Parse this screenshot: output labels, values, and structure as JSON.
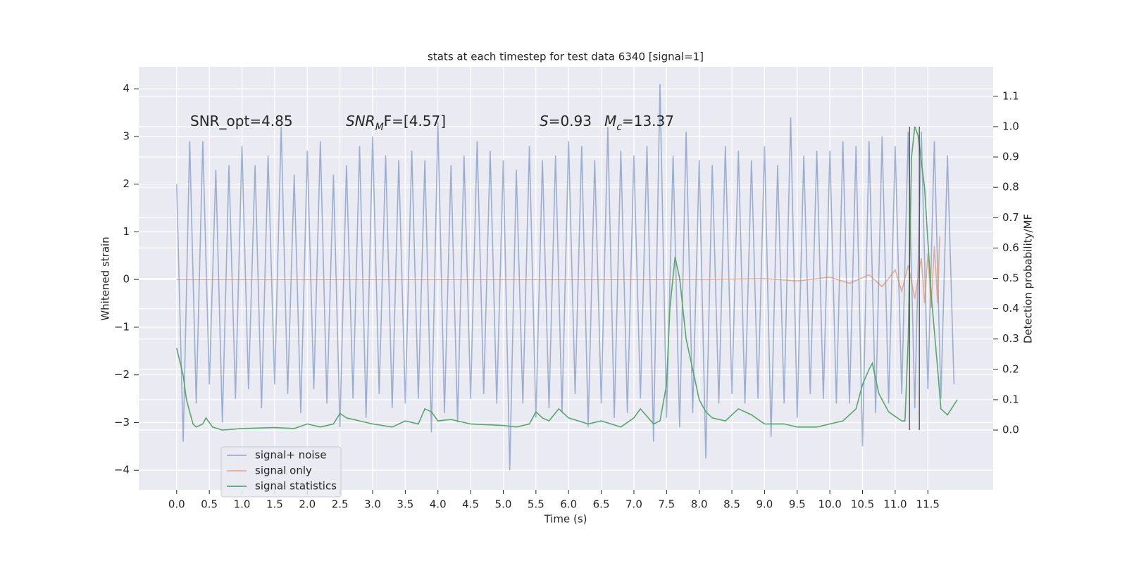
{
  "chart_data": {
    "type": "line",
    "title": "stats at each timestep for test data 6340 [signal=1]",
    "x_label": "Time (s)",
    "y_label": "Whitened strain",
    "y2_label": "Detection probability/MF",
    "annotations": [
      [
        "SNR_opt=4.85"
      ],
      [
        "SNR",
        "M",
        "F=[4.57]"
      ],
      [
        "S",
        "=0.93"
      ],
      [
        "M",
        "c",
        "=13.37"
      ]
    ],
    "xlim": [
      -0.58,
      12.5
    ],
    "ylim": [
      -4.41,
      4.46
    ],
    "y2lim": [
      -0.197,
      1.197
    ],
    "xticks": [
      {
        "value": 0,
        "label": "0.0"
      },
      0.5,
      {
        "value": 1,
        "label": "1.0"
      },
      1.5,
      {
        "value": 2,
        "label": "2.0"
      },
      2.5,
      {
        "value": 3,
        "label": "3.0"
      },
      3.5,
      {
        "value": 4,
        "label": "4.0"
      },
      4.5,
      {
        "value": 5,
        "label": "5.0"
      },
      5.5,
      {
        "value": 6,
        "label": "6.0"
      },
      6.5,
      {
        "value": 7,
        "label": "7.0"
      },
      7.5,
      {
        "value": 8,
        "label": "8.0"
      },
      8.5,
      {
        "value": 9,
        "label": "9.0"
      },
      9.5,
      {
        "value": 10,
        "label": "10.0"
      },
      10.5,
      {
        "value": 11,
        "label": "11.0"
      },
      11.5
    ],
    "yticks": [
      {
        "value": -4,
        "label": "−4"
      },
      {
        "value": -3,
        "label": "−3"
      },
      {
        "value": -2,
        "label": "−2"
      },
      {
        "value": -1,
        "label": "−1"
      },
      0,
      1,
      2,
      3,
      4
    ],
    "y2ticks": [
      {
        "value": 0,
        "label": "0.0"
      },
      0.1,
      0.2,
      0.3,
      0.4,
      0.5,
      0.6,
      0.7,
      0.8,
      0.9,
      {
        "value": 1,
        "label": "1.0"
      },
      1.1
    ],
    "grid": true,
    "legend": "lower left",
    "vlines": {
      "color": "#333333",
      "x": [
        11.22,
        11.37
      ],
      "y2": [
        0,
        1
      ]
    },
    "series": [
      {
        "name": "signal+ noise",
        "color": "#4c72b0",
        "opacity": 0.5,
        "x": [
          0,
          0.1,
          0.2,
          0.3,
          0.4,
          0.5,
          0.6,
          0.7,
          0.8,
          0.9,
          1,
          1.1,
          1.2,
          1.3,
          1.4,
          1.5,
          1.6,
          1.7,
          1.8,
          1.9,
          2,
          2.1,
          2.2,
          2.3,
          2.4,
          2.5,
          2.6,
          2.7,
          2.8,
          2.9,
          3,
          3.1,
          3.2,
          3.3,
          3.4,
          3.5,
          3.6,
          3.7,
          3.8,
          3.9,
          4,
          4.1,
          4.2,
          4.3,
          4.4,
          4.5,
          4.6,
          4.7,
          4.8,
          4.9,
          5,
          5.1,
          5.2,
          5.3,
          5.4,
          5.5,
          5.6,
          5.7,
          5.8,
          5.9,
          6,
          6.1,
          6.2,
          6.3,
          6.4,
          6.5,
          6.6,
          6.7,
          6.8,
          6.9,
          7,
          7.1,
          7.2,
          7.3,
          7.4,
          7.5,
          7.6,
          7.7,
          7.8,
          7.9,
          8,
          8.1,
          8.2,
          8.3,
          8.4,
          8.5,
          8.6,
          8.7,
          8.8,
          8.9,
          9,
          9.1,
          9.2,
          9.3,
          9.4,
          9.5,
          9.6,
          9.7,
          9.8,
          9.9,
          10,
          10.1,
          10.2,
          10.3,
          10.4,
          10.5,
          10.6,
          10.7,
          10.8,
          10.9,
          11,
          11.1,
          11.2,
          11.3,
          11.4,
          11.5,
          11.6,
          11.7,
          11.8,
          11.9
        ],
        "values": [
          2.0,
          -3.4,
          2.9,
          -2.6,
          2.9,
          -2.2,
          2.3,
          -3.0,
          2.4,
          -2.5,
          2.8,
          -2.3,
          2.4,
          -2.7,
          2.6,
          -2.2,
          3.2,
          -2.4,
          2.2,
          -2.8,
          2.7,
          -2.3,
          2.9,
          -2.6,
          2.2,
          -3.1,
          2.4,
          -2.5,
          2.8,
          -2.9,
          3.0,
          -2.4,
          2.6,
          -2.7,
          2.5,
          -2.6,
          2.7,
          -2.5,
          2.5,
          -3.2,
          3.3,
          -2.8,
          2.4,
          -3.0,
          2.6,
          -2.5,
          2.9,
          -2.4,
          2.7,
          -2.6,
          2.5,
          -4.0,
          2.3,
          -2.6,
          2.8,
          -2.9,
          2.5,
          -2.7,
          2.6,
          -2.8,
          2.9,
          -2.4,
          2.8,
          -3.1,
          2.5,
          -2.6,
          3.2,
          -2.9,
          2.7,
          -2.8,
          2.6,
          -2.5,
          2.8,
          -3.4,
          4.1,
          -2.9,
          2.6,
          -3.1,
          3.1,
          -2.8,
          2.5,
          -3.75,
          2.4,
          -2.6,
          2.8,
          -2.4,
          2.7,
          -2.6,
          2.5,
          -2.5,
          2.8,
          -3.3,
          2.4,
          -2.6,
          3.4,
          -2.9,
          2.6,
          -2.4,
          2.7,
          -2.5,
          2.7,
          -2.6,
          2.9,
          -2.6,
          2.8,
          -3.5,
          2.9,
          -2.8,
          3.0,
          -2.6,
          2.8,
          -2.4,
          3.1,
          -2.7,
          3.1,
          -2.3,
          2.9,
          -2.5,
          2.6,
          -2.2
        ]
      },
      {
        "name": "signal only",
        "color": "#dd8452",
        "opacity": 0.6,
        "x": [
          0,
          8,
          9,
          9.5,
          10,
          10.3,
          10.6,
          10.8,
          11.0,
          11.1,
          11.2,
          11.3,
          11.4,
          11.45,
          11.5,
          11.55,
          11.6,
          11.65,
          11.68
        ],
        "values": [
          0,
          0,
          0.02,
          -0.03,
          0.05,
          -0.08,
          0.1,
          -0.15,
          0.2,
          -0.25,
          0.3,
          -0.4,
          0.45,
          -0.5,
          0.55,
          -0.6,
          0.7,
          -0.5,
          0.9
        ]
      },
      {
        "name": "signal statistics",
        "color": "#55a868",
        "opacity": 1,
        "axis": "y2",
        "x": [
          0,
          0.1,
          0.15,
          0.25,
          0.3,
          0.4,
          0.45,
          0.55,
          0.7,
          1.0,
          1.5,
          1.8,
          2.0,
          2.2,
          2.4,
          2.5,
          2.6,
          2.8,
          3.0,
          3.3,
          3.5,
          3.7,
          3.8,
          3.9,
          4.0,
          4.2,
          4.5,
          5.0,
          5.2,
          5.4,
          5.5,
          5.6,
          5.7,
          5.85,
          6.0,
          6.3,
          6.5,
          6.8,
          7.0,
          7.1,
          7.3,
          7.4,
          7.5,
          7.55,
          7.63,
          7.7,
          7.8,
          7.9,
          8.0,
          8.1,
          8.2,
          8.4,
          8.6,
          8.8,
          9.0,
          9.3,
          9.5,
          9.8,
          10.0,
          10.2,
          10.4,
          10.5,
          10.6,
          10.65,
          10.75,
          10.9,
          11.1,
          11.15,
          11.2,
          11.25,
          11.3,
          11.35,
          11.45,
          11.55,
          11.65,
          11.7,
          11.8,
          11.95
        ],
        "values": [
          0.27,
          0.18,
          0.1,
          0.02,
          0.01,
          0.02,
          0.04,
          0.01,
          0.0,
          0.005,
          0.008,
          0.005,
          0.02,
          0.01,
          0.02,
          0.055,
          0.04,
          0.03,
          0.02,
          0.01,
          0.03,
          0.02,
          0.07,
          0.06,
          0.03,
          0.035,
          0.02,
          0.015,
          0.01,
          0.02,
          0.06,
          0.04,
          0.03,
          0.07,
          0.04,
          0.02,
          0.03,
          0.01,
          0.04,
          0.07,
          0.02,
          0.03,
          0.15,
          0.4,
          0.57,
          0.5,
          0.3,
          0.2,
          0.1,
          0.06,
          0.04,
          0.03,
          0.07,
          0.05,
          0.02,
          0.02,
          0.01,
          0.01,
          0.02,
          0.03,
          0.07,
          0.15,
          0.2,
          0.22,
          0.12,
          0.06,
          0.03,
          0.03,
          0.3,
          0.9,
          1.0,
          0.97,
          0.8,
          0.45,
          0.2,
          0.07,
          0.05,
          0.1
        ]
      }
    ]
  }
}
